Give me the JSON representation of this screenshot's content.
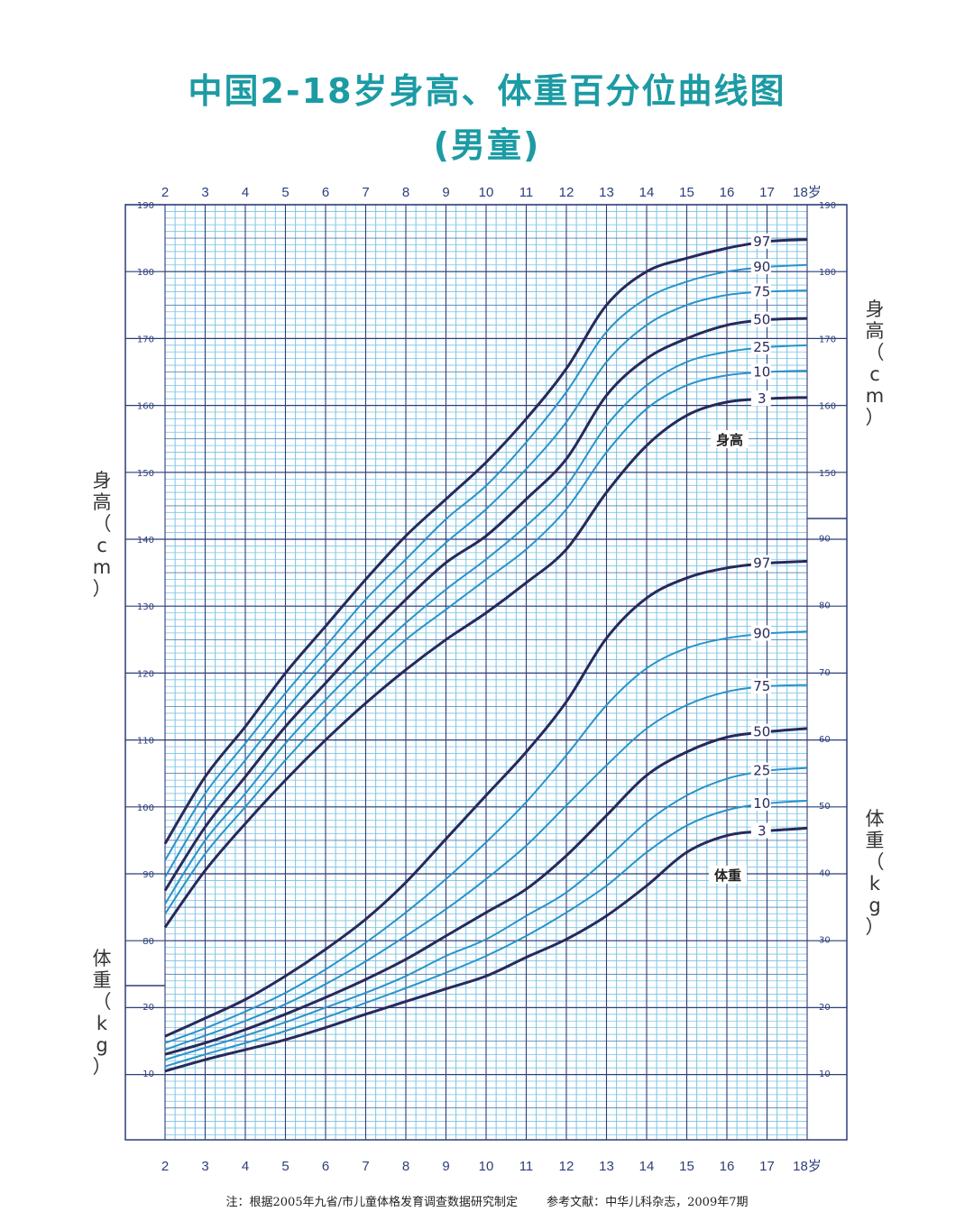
{
  "title": "中国2-18岁身高、体重百分位曲线图",
  "subtitle": "(男童)",
  "footnote_left": "注：根据2005年九省/市儿童体格发育调查数据研究制定",
  "footnote_right": "参考文献：中华儿科杂志，2009年7期",
  "chart_data": {
    "type": "line",
    "x_ticks": [
      "2",
      "3",
      "4",
      "5",
      "6",
      "7",
      "8",
      "9",
      "10",
      "11",
      "12",
      "13",
      "14",
      "15",
      "16",
      "17",
      "18岁"
    ],
    "xlim": [
      2,
      18
    ],
    "left_height_label": "身高（cm）",
    "left_weight_label": "体重（kg）",
    "right_height_label": "身高（cm）",
    "right_weight_label": "体重（kg）",
    "height_ticks_left": [
      80,
      90,
      100,
      110,
      120,
      130,
      140,
      150,
      160,
      170,
      180,
      190
    ],
    "height_ticks_right": [
      150,
      160,
      170,
      180,
      190
    ],
    "weight_ticks_left": [
      10,
      20
    ],
    "weight_ticks_right": [
      10,
      20,
      30,
      40,
      50,
      60,
      70,
      80,
      90
    ],
    "height_ylim": [
      80,
      190
    ],
    "weight_ylim": [
      10,
      90
    ],
    "height_curve_label": "身高",
    "weight_curve_label": "体重",
    "colors": {
      "dark": "#27295c",
      "light": "#2a93c9",
      "grid": "#2d3e7a",
      "minor": "#7cc3e3",
      "title": "#1c9ba4"
    },
    "height_series": [
      {
        "name": "97",
        "x": [
          2,
          3,
          4,
          5,
          6,
          7,
          8,
          9,
          10,
          11,
          12,
          13,
          14,
          15,
          16,
          17,
          18
        ],
        "values": [
          94.5,
          104.5,
          112,
          120,
          127,
          134,
          140.5,
          146,
          151.5,
          158,
          165.5,
          175,
          180,
          182,
          183.5,
          184.5,
          184.8
        ]
      },
      {
        "name": "90",
        "x": [
          2,
          3,
          4,
          5,
          6,
          7,
          8,
          9,
          10,
          11,
          12,
          13,
          14,
          15,
          16,
          17,
          18
        ],
        "values": [
          92,
          102,
          109.5,
          117,
          124,
          131,
          137,
          143,
          148,
          154.5,
          162,
          171,
          176,
          178.5,
          180,
          180.7,
          181
        ]
      },
      {
        "name": "75",
        "x": [
          2,
          3,
          4,
          5,
          6,
          7,
          8,
          9,
          10,
          11,
          12,
          13,
          14,
          15,
          16,
          17,
          18
        ],
        "values": [
          89.5,
          99.5,
          107,
          114.5,
          121.5,
          128,
          134,
          139.5,
          144.5,
          150.5,
          157.5,
          166.5,
          172,
          175,
          176.5,
          177,
          177.2
        ]
      },
      {
        "name": "50",
        "x": [
          2,
          3,
          4,
          5,
          6,
          7,
          8,
          9,
          10,
          11,
          12,
          13,
          14,
          15,
          16,
          17,
          18
        ],
        "values": [
          87.5,
          97,
          104.5,
          112,
          118.5,
          125,
          131,
          136.5,
          140.5,
          146,
          152,
          161.5,
          167,
          170,
          172,
          172.8,
          173
        ]
      },
      {
        "name": "25",
        "x": [
          2,
          3,
          4,
          5,
          6,
          7,
          8,
          9,
          10,
          11,
          12,
          13,
          14,
          15,
          16,
          17,
          18
        ],
        "values": [
          85.5,
          95,
          102,
          109.5,
          116,
          122,
          127.5,
          132.5,
          137,
          142,
          148,
          157,
          163,
          166.5,
          168,
          168.7,
          169
        ]
      },
      {
        "name": "10",
        "x": [
          2,
          3,
          4,
          5,
          6,
          7,
          8,
          9,
          10,
          11,
          12,
          13,
          14,
          15,
          16,
          17,
          18
        ],
        "values": [
          84,
          93,
          100,
          107,
          113.5,
          119.5,
          125,
          129.5,
          134,
          138.5,
          144.5,
          153,
          159.5,
          163,
          164.5,
          165,
          165.2
        ]
      },
      {
        "name": "3",
        "x": [
          2,
          3,
          4,
          5,
          6,
          7,
          8,
          9,
          10,
          11,
          12,
          13,
          14,
          15,
          16,
          17,
          18
        ],
        "values": [
          82,
          90.5,
          97.5,
          104,
          110,
          115.5,
          120.5,
          125,
          129,
          133.5,
          138.5,
          147,
          154,
          158.5,
          160.5,
          161,
          161.2
        ]
      }
    ],
    "weight_series": [
      {
        "name": "97",
        "x": [
          2,
          3,
          4,
          5,
          6,
          7,
          8,
          9,
          10,
          11,
          12,
          13,
          14,
          15,
          16,
          17,
          18
        ],
        "values": [
          15.5,
          18.2,
          21,
          24.5,
          28.5,
          33,
          38.5,
          45,
          51.5,
          58,
          65.5,
          75,
          81,
          84,
          85.5,
          86.2,
          86.5
        ]
      },
      {
        "name": "90",
        "x": [
          2,
          3,
          4,
          5,
          6,
          7,
          8,
          9,
          10,
          11,
          12,
          13,
          14,
          15,
          16,
          17,
          18
        ],
        "values": [
          14.5,
          16.7,
          19.2,
          22,
          25.5,
          29.5,
          34,
          39,
          44.5,
          50.5,
          57.5,
          65,
          70.5,
          73.5,
          75,
          75.7,
          76
        ]
      },
      {
        "name": "75",
        "x": [
          2,
          3,
          4,
          5,
          6,
          7,
          8,
          9,
          10,
          11,
          12,
          13,
          14,
          15,
          16,
          17,
          18
        ],
        "values": [
          13.5,
          15.6,
          17.8,
          20.3,
          23.3,
          26.7,
          30.5,
          34.5,
          39,
          44,
          50,
          56,
          61.5,
          65,
          67,
          67.8,
          68
        ]
      },
      {
        "name": "50",
        "x": [
          2,
          3,
          4,
          5,
          6,
          7,
          8,
          9,
          10,
          11,
          12,
          13,
          14,
          15,
          16,
          17,
          18
        ],
        "values": [
          12.8,
          14.5,
          16.5,
          18.8,
          21.3,
          24,
          27,
          30.5,
          34,
          37.5,
          42.5,
          48.5,
          54.5,
          58,
          60.2,
          61,
          61.5
        ]
      },
      {
        "name": "25",
        "x": [
          2,
          3,
          4,
          5,
          6,
          7,
          8,
          9,
          10,
          11,
          12,
          13,
          14,
          15,
          16,
          17,
          18
        ],
        "values": [
          12,
          13.8,
          15.6,
          17.6,
          19.8,
          22,
          24.5,
          27.5,
          30,
          33.5,
          37,
          42,
          47.5,
          51.5,
          54,
          55.2,
          55.6
        ]
      },
      {
        "name": "10",
        "x": [
          2,
          3,
          4,
          5,
          6,
          7,
          8,
          9,
          10,
          11,
          12,
          13,
          14,
          15,
          16,
          17,
          18
        ],
        "values": [
          11,
          12.8,
          14.5,
          16.3,
          18.3,
          20.5,
          22.7,
          25,
          27.5,
          30.5,
          34,
          38,
          43,
          47,
          49.3,
          50.3,
          50.7
        ]
      },
      {
        "name": "3",
        "x": [
          2,
          3,
          4,
          5,
          6,
          7,
          8,
          9,
          10,
          11,
          12,
          13,
          14,
          15,
          16,
          17,
          18
        ],
        "values": [
          10.3,
          12,
          13.5,
          15,
          16.8,
          18.8,
          20.7,
          22.6,
          24.5,
          27.3,
          30,
          33.5,
          38,
          43,
          45.5,
          46.2,
          46.6
        ]
      }
    ]
  }
}
